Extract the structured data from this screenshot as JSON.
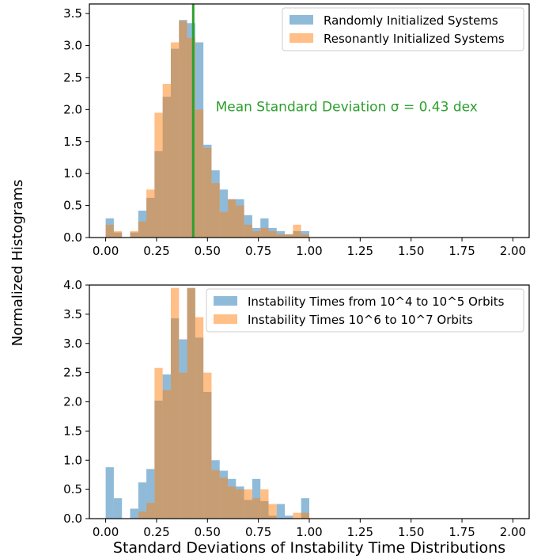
{
  "figure": {
    "ylabel": "Normalized Histograms",
    "xlabel": "Standard Deviations of Instability Time Distributions"
  },
  "chart_data": [
    {
      "type": "histogram",
      "title": "",
      "xlabel": "",
      "ylabel": "",
      "xlim": [
        -0.08,
        2.08
      ],
      "ylim": [
        0,
        3.65
      ],
      "xticks": [
        "0.00",
        "0.25",
        "0.50",
        "0.75",
        "1.00",
        "1.25",
        "1.50",
        "1.75",
        "2.00"
      ],
      "yticks": [
        "0.0",
        "0.5",
        "1.0",
        "1.5",
        "2.0",
        "2.5",
        "3.0",
        "3.5"
      ],
      "bin_width": 0.04,
      "bin_start": 0.0,
      "legend_position": "top-right",
      "series": [
        {
          "name": "Randomly Initialized Systems",
          "color": "#1f77b4",
          "opacity": 0.5,
          "values": [
            0.3,
            0.08,
            0,
            0.08,
            0.42,
            0.62,
            1.35,
            2.2,
            2.95,
            3.4,
            3.35,
            3.05,
            1.45,
            1.05,
            0.75,
            0.6,
            0.6,
            0.35,
            0.15,
            0.3,
            0.15,
            0.1,
            0.05,
            0.1,
            0.1,
            0,
            0,
            0,
            0,
            0,
            0,
            0,
            0,
            0,
            0,
            0,
            0,
            0,
            0,
            0,
            0,
            0,
            0,
            0,
            0,
            0,
            0,
            0,
            0,
            0,
            0
          ]
        },
        {
          "name": "Resonantly Initialized Systems",
          "color": "#ff7f0e",
          "opacity": 0.5,
          "values": [
            0.2,
            0.1,
            0,
            0.1,
            0.25,
            0.75,
            1.95,
            2.4,
            3.05,
            3.38,
            3.12,
            2.0,
            1.4,
            0.85,
            0.4,
            0.6,
            0.5,
            0.2,
            0.1,
            0.15,
            0.1,
            0.05,
            0.05,
            0.2,
            0.05,
            0,
            0,
            0,
            0,
            0,
            0,
            0,
            0,
            0,
            0,
            0,
            0,
            0,
            0,
            0,
            0,
            0,
            0,
            0,
            0,
            0,
            0,
            0,
            0,
            0,
            0
          ]
        }
      ],
      "vline": {
        "x": 0.43,
        "color": "#2ca02c"
      },
      "annotation": {
        "text": "Mean Standard Deviation σ = 0.43 dex",
        "color": "#2ca02c",
        "x": 0.54,
        "y": 2.05
      }
    },
    {
      "type": "histogram",
      "title": "",
      "xlabel": "Standard Deviations of Instability Time Distributions",
      "ylabel": "",
      "xlim": [
        -0.08,
        2.08
      ],
      "ylim": [
        0,
        4.0
      ],
      "xticks": [
        "0.00",
        "0.25",
        "0.50",
        "0.75",
        "1.00",
        "1.25",
        "1.50",
        "1.75",
        "2.00"
      ],
      "yticks": [
        "0.0",
        "0.5",
        "1.0",
        "1.5",
        "2.0",
        "2.5",
        "3.0",
        "3.5",
        "4.0"
      ],
      "bin_width": 0.04,
      "bin_start": 0.0,
      "legend_position": "top-right",
      "series": [
        {
          "name": "Instability Times from 10^4 to 10^5 Orbits",
          "color": "#1f77b4",
          "opacity": 0.5,
          "values": [
            0.88,
            0.35,
            0,
            0.17,
            0.62,
            0.85,
            2.02,
            2.47,
            3.43,
            3.07,
            3.95,
            3.1,
            2.17,
            1.0,
            0.82,
            0.68,
            0.55,
            0.32,
            0.68,
            0.3,
            0.05,
            0.25,
            0.05,
            0,
            0.35,
            0,
            0,
            0,
            0,
            0,
            0,
            0,
            0,
            0,
            0,
            0,
            0,
            0,
            0,
            0,
            0,
            0,
            0,
            0,
            0,
            0,
            0,
            0,
            0,
            0,
            0
          ]
        },
        {
          "name": "Instability Times 10^6 to 10^7 Orbits",
          "color": "#ff7f0e",
          "opacity": 0.5,
          "values": [
            0,
            0,
            0,
            0,
            0.12,
            0.27,
            2.58,
            2.2,
            3.95,
            2.5,
            3.95,
            3.45,
            2.5,
            0.83,
            0.7,
            0.55,
            0.5,
            0.5,
            0.35,
            0.5,
            0.25,
            0,
            0,
            0.1,
            0.1,
            0,
            0,
            0,
            0,
            0,
            0,
            0,
            0,
            0,
            0,
            0,
            0,
            0,
            0,
            0,
            0,
            0,
            0,
            0,
            0,
            0,
            0,
            0,
            0,
            0,
            0
          ]
        }
      ]
    }
  ]
}
